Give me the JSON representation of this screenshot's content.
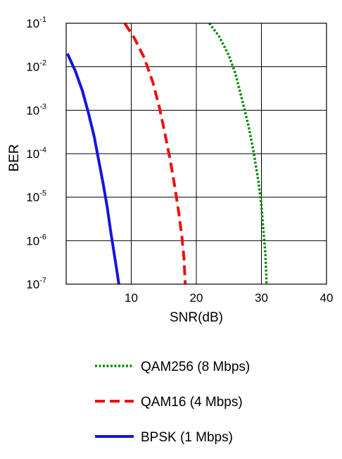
{
  "chart_data": {
    "type": "line",
    "xlabel": "SNR(dB)",
    "ylabel": "BER",
    "xlim": [
      0,
      40
    ],
    "ylim_exponent": [
      -7,
      -1
    ],
    "y_scale": "log",
    "grid": true,
    "legend_placement": "bottom",
    "x_ticks": [
      "10",
      "20",
      "30",
      "40"
    ],
    "y_ticks": [
      {
        "base": "10",
        "exp": "-1"
      },
      {
        "base": "10",
        "exp": "-2"
      },
      {
        "base": "10",
        "exp": "-3"
      },
      {
        "base": "10",
        "exp": "-4"
      },
      {
        "base": "10",
        "exp": "-5"
      },
      {
        "base": "10",
        "exp": "-6"
      },
      {
        "base": "10",
        "exp": "-7"
      }
    ],
    "series": [
      {
        "name": "QAM256 (8 Mbps)",
        "color": "#0a8a0a",
        "style": "dotted",
        "x": [
          22.0,
          23.5,
          25.0,
          26.0,
          27.0,
          28.0,
          28.8,
          29.5,
          30.0,
          30.3,
          30.6,
          30.8
        ],
        "y": [
          0.1,
          0.05,
          0.018,
          0.007,
          0.0018,
          0.00045,
          0.00011,
          2.5e-05,
          6.5e-06,
          1.7e-06,
          5e-07,
          1e-07
        ]
      },
      {
        "name": "QAM16 (4 Mbps)",
        "color": "#ee1111",
        "style": "dashed",
        "x": [
          9.0,
          10.5,
          12.0,
          13.3,
          14.3,
          15.2,
          16.0,
          16.7,
          17.3,
          17.8,
          18.1,
          18.3
        ],
        "y": [
          0.1,
          0.045,
          0.016,
          0.0045,
          0.0012,
          0.00028,
          7e-05,
          1.7e-05,
          4.5e-06,
          1.2e-06,
          4e-07,
          1e-07
        ]
      },
      {
        "name": "BPSK (1 Mbps)",
        "color": "#1515dd",
        "style": "solid",
        "x": [
          0.2,
          1.4,
          2.5,
          3.4,
          4.3,
          5.0,
          5.7,
          6.3,
          6.8,
          7.3,
          7.7,
          8.1
        ],
        "y": [
          0.02,
          0.008,
          0.0028,
          0.0009,
          0.00025,
          7e-05,
          2e-05,
          6e-06,
          1.8e-06,
          6e-07,
          2.5e-07,
          1e-07
        ]
      }
    ]
  }
}
